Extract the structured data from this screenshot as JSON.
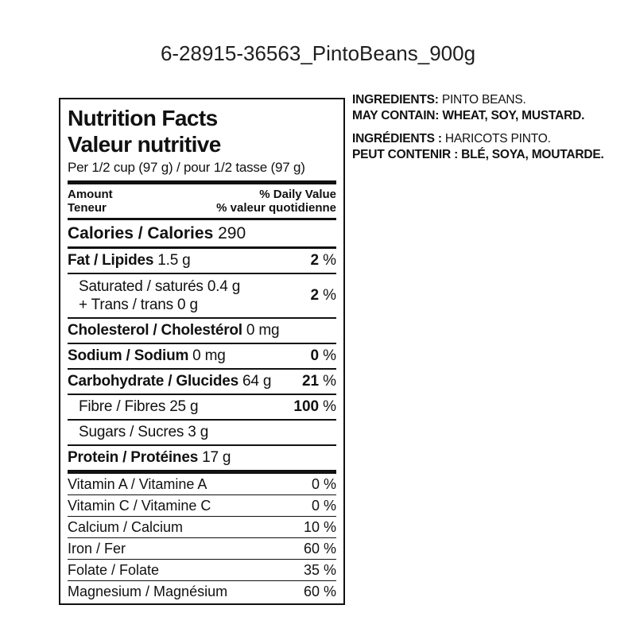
{
  "page": {
    "title": "6-28915-36563_PintoBeans_900g"
  },
  "panel": {
    "title_en": "Nutrition Facts",
    "title_fr": "Valeur nutritive",
    "serving": "Per 1/2 cup (97 g) / pour 1/2 tasse (97 g)",
    "amount_en": "Amount",
    "amount_fr": "Teneur",
    "dv_en": "% Daily Value",
    "dv_fr": "% valeur quotidienne",
    "calories_label": "Calories / Calories",
    "calories_value": "290",
    "rows": [
      {
        "name": "Fat / Lipides",
        "amount": "1.5 g",
        "pct": "2",
        "sign": "%"
      },
      {
        "line1": "Saturated / saturés 0.4 g",
        "line2": "+ Trans / trans 0 g",
        "pct": "2",
        "sign": "%"
      },
      {
        "name": "Cholesterol / Cholestérol",
        "amount": "0 mg",
        "pct": "",
        "sign": ""
      },
      {
        "name": "Sodium / Sodium",
        "amount": "0 mg",
        "pct": "0",
        "sign": "%"
      },
      {
        "name": "Carbohydrate / Glucides",
        "amount": "64 g",
        "pct": "21",
        "sign": "%"
      },
      {
        "name": "Fibre / Fibres 25 g",
        "pct": "100",
        "sign": "%"
      },
      {
        "name": "Sugars / Sucres 3 g",
        "pct": "",
        "sign": ""
      },
      {
        "name": "Protein / Protéines",
        "amount": "17 g",
        "pct": "",
        "sign": ""
      }
    ],
    "micronutrients": [
      {
        "name": "Vitamin A / Vitamine A",
        "pct": "0",
        "sign": "%"
      },
      {
        "name": "Vitamin C / Vitamine C",
        "pct": "0",
        "sign": "%"
      },
      {
        "name": "Calcium / Calcium",
        "pct": "10",
        "sign": "%"
      },
      {
        "name": "Iron / Fer",
        "pct": "60",
        "sign": "%"
      },
      {
        "name": "Folate / Folate",
        "pct": "35",
        "sign": "%"
      },
      {
        "name": "Magnesium / Magnésium",
        "pct": "60",
        "sign": "%"
      }
    ]
  },
  "ingredients": {
    "en_label": "INGREDIENTS:",
    "en_value": "PINTO BEANS.",
    "en_contain_label": "MAY CONTAIN:",
    "en_contain_value": "WHEAT, SOY, MUSTARD.",
    "fr_label": "INGRÉDIENTS :",
    "fr_value": "HARICOTS PINTO.",
    "fr_contain_label": "PEUT CONTENIR :",
    "fr_contain_value": "BLÉ, SOYA, MOUTARDE."
  },
  "colors": {
    "text": "#111111",
    "rule": "#111111",
    "background": "#ffffff"
  }
}
